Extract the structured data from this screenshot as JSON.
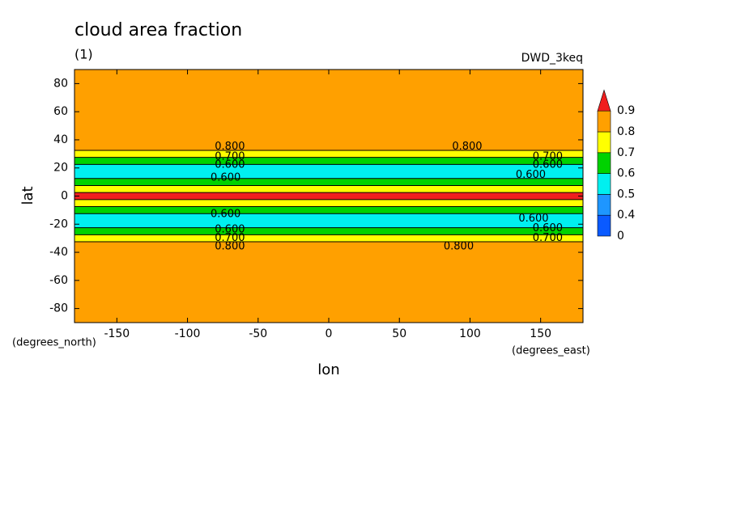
{
  "chart_data": {
    "type": "contour",
    "title": "cloud area fraction",
    "subtitle": "(1)",
    "annotation": "DWD_3keq",
    "x_label": "lon",
    "y_label": "lat",
    "x_units": "(degrees_east)",
    "y_units": "(degrees_north)",
    "xlim": [
      -180,
      180
    ],
    "ylim": [
      -90,
      90
    ],
    "xticks": [
      -150,
      -100,
      -50,
      0,
      50,
      100,
      150
    ],
    "yticks": [
      -80,
      -60,
      -40,
      -20,
      0,
      20,
      40,
      60,
      80
    ],
    "y": [
      90,
      85,
      80,
      75,
      70,
      65,
      60,
      55,
      50,
      45,
      40,
      35,
      30,
      25,
      20,
      15,
      10,
      5,
      0,
      -5,
      -10,
      -15,
      -20,
      -25,
      -30,
      -35,
      -40,
      -45,
      -50,
      -55,
      -60,
      -65,
      -70,
      -75,
      -80,
      -85,
      -90
    ],
    "values": [
      0.85,
      0.85,
      0.85,
      0.85,
      0.85,
      0.85,
      0.85,
      0.85,
      0.85,
      0.85,
      0.85,
      0.82,
      0.75,
      0.68,
      0.58,
      0.55,
      0.62,
      0.78,
      0.93,
      0.78,
      0.65,
      0.58,
      0.55,
      0.62,
      0.72,
      0.82,
      0.85,
      0.85,
      0.85,
      0.85,
      0.85,
      0.85,
      0.85,
      0.85,
      0.85,
      0.85,
      0.85
    ],
    "colorbar": {
      "levels": [
        0,
        0.4,
        0.5,
        0.6,
        0.7,
        0.8,
        0.9
      ],
      "colors": [
        "#0a5aff",
        "#1e96ff",
        "#00f0f0",
        "#00d200",
        "#ffff00",
        "#ffa000",
        "#f01e1e"
      ]
    },
    "contour_labels": [
      {
        "value": 0.8,
        "label": "0.800",
        "x": -70,
        "y": 35
      },
      {
        "value": 0.8,
        "label": "0.800",
        "x": 98,
        "y": 35
      },
      {
        "value": 0.7,
        "label": "0.700",
        "x": -70,
        "y": 28
      },
      {
        "value": 0.7,
        "label": "0.700",
        "x": 155,
        "y": 28
      },
      {
        "value": 0.6,
        "label": "0.600",
        "x": -70,
        "y": 22
      },
      {
        "value": 0.6,
        "label": "0.600",
        "x": 155,
        "y": 22
      },
      {
        "value": 0.6,
        "label": "0.600",
        "x": -73,
        "y": 13
      },
      {
        "value": 0.6,
        "label": "0.600",
        "x": 143,
        "y": 15
      },
      {
        "value": 0.6,
        "label": "0.600",
        "x": -73,
        "y": -13
      },
      {
        "value": 0.6,
        "label": "0.600",
        "x": 145,
        "y": -16
      },
      {
        "value": 0.6,
        "label": "0.600",
        "x": -70,
        "y": -24
      },
      {
        "value": 0.6,
        "label": "0.600",
        "x": 155,
        "y": -23
      },
      {
        "value": 0.7,
        "label": "0.700",
        "x": -70,
        "y": -30
      },
      {
        "value": 0.7,
        "label": "0.700",
        "x": 155,
        "y": -30
      },
      {
        "value": 0.8,
        "label": "0.800",
        "x": -70,
        "y": -36
      },
      {
        "value": 0.8,
        "label": "0.800",
        "x": 92,
        "y": -36
      }
    ]
  }
}
